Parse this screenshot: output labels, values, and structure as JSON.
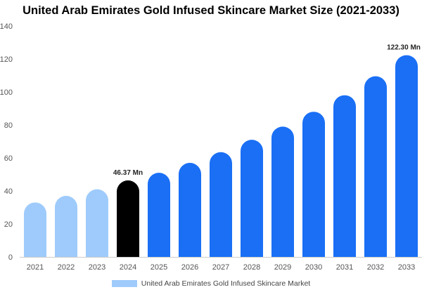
{
  "chart_data": {
    "type": "bar",
    "title": "United Arab Emirates Gold Infused Skincare Market Size (2021-2033)",
    "categories": [
      "2021",
      "2022",
      "2023",
      "2024",
      "2025",
      "2026",
      "2027",
      "2028",
      "2029",
      "2030",
      "2031",
      "2032",
      "2033"
    ],
    "series": [
      {
        "name": "United Arab Emirates Gold Infused Skincare Market",
        "values": [
          33,
          37,
          41,
          46.37,
          51,
          57,
          63.5,
          71,
          79,
          88,
          98,
          109.5,
          122.3
        ]
      }
    ],
    "ylim": [
      0,
      140
    ],
    "yticks": [
      0,
      20,
      40,
      60,
      80,
      100,
      120,
      140
    ],
    "grid": false,
    "legend_position": "bottom",
    "annotations": [
      {
        "category": "2024",
        "text": "46.37 Mn"
      },
      {
        "category": "2033",
        "text": "122.30 Mn"
      }
    ],
    "colors": {
      "historical": "#9ecbfb",
      "base_year": "#000000",
      "forecast": "#1a6ff5",
      "axis": "#cccccc"
    },
    "base_year_index": 3
  }
}
